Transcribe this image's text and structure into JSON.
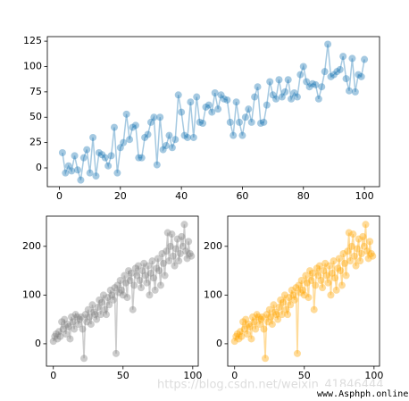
{
  "chart_data": [
    {
      "type": "line",
      "marker": "circle",
      "color": "#1f77b4",
      "x": [
        1,
        2,
        3,
        4,
        5,
        6,
        7,
        8,
        9,
        10,
        11,
        12,
        13,
        14,
        15,
        16,
        17,
        18,
        19,
        20,
        21,
        22,
        23,
        24,
        25,
        26,
        27,
        28,
        29,
        30,
        31,
        32,
        33,
        34,
        35,
        36,
        37,
        38,
        39,
        40,
        41,
        42,
        43,
        44,
        45,
        46,
        47,
        48,
        49,
        50,
        51,
        52,
        53,
        54,
        55,
        56,
        57,
        58,
        59,
        60,
        61,
        62,
        63,
        64,
        65,
        66,
        67,
        68,
        69,
        70,
        71,
        72,
        73,
        74,
        75,
        76,
        77,
        78,
        79,
        80,
        81,
        82,
        83,
        84,
        85,
        86,
        87,
        88,
        89,
        90,
        91,
        92,
        93,
        94,
        95,
        96,
        97,
        98,
        99,
        100
      ],
      "values": [
        15,
        -5,
        2,
        -3,
        12,
        -2,
        -12,
        10,
        18,
        -5,
        30,
        -8,
        15,
        13,
        10,
        2,
        12,
        40,
        -5,
        20,
        25,
        53,
        28,
        40,
        42,
        10,
        10,
        30,
        33,
        45,
        50,
        3,
        50,
        18,
        22,
        32,
        20,
        28,
        72,
        55,
        32,
        30,
        65,
        30,
        70,
        45,
        44,
        60,
        62,
        55,
        74,
        58,
        72,
        68,
        67,
        45,
        32,
        65,
        45,
        32,
        50,
        58,
        45,
        70,
        80,
        44,
        45,
        62,
        85,
        72,
        68,
        87,
        70,
        75,
        87,
        68,
        74,
        70,
        92,
        100,
        85,
        80,
        83,
        82,
        68,
        80,
        95,
        122,
        90,
        92,
        95,
        97,
        110,
        88,
        76,
        108,
        75,
        92,
        90,
        107
      ],
      "xlim": [
        -3.95,
        104.95
      ],
      "xticks": [
        0,
        20,
        40,
        60,
        80,
        100
      ],
      "ylim": [
        -18.5,
        129.5
      ],
      "yticks": [
        0,
        25,
        50,
        75,
        100,
        125
      ]
    },
    {
      "type": "line",
      "marker": "circle",
      "color": "#808080",
      "x": [
        0,
        1,
        2,
        3,
        4,
        5,
        6,
        7,
        8,
        9,
        10,
        11,
        12,
        13,
        14,
        15,
        16,
        17,
        18,
        19,
        20,
        21,
        22,
        23,
        24,
        25,
        26,
        27,
        28,
        29,
        30,
        31,
        32,
        33,
        34,
        35,
        36,
        37,
        38,
        39,
        40,
        41,
        42,
        43,
        44,
        45,
        46,
        47,
        48,
        49,
        50,
        51,
        52,
        53,
        54,
        55,
        56,
        57,
        58,
        59,
        60,
        61,
        62,
        63,
        64,
        65,
        66,
        67,
        68,
        69,
        70,
        71,
        72,
        73,
        74,
        75,
        76,
        77,
        78,
        79,
        80,
        81,
        82,
        83,
        84,
        85,
        86,
        87,
        88,
        89,
        90,
        91,
        92,
        93,
        94,
        95,
        96,
        97,
        98,
        99
      ],
      "values": [
        5,
        15,
        20,
        10,
        25,
        15,
        45,
        30,
        50,
        20,
        40,
        35,
        10,
        55,
        45,
        30,
        60,
        55,
        40,
        50,
        55,
        30,
        -30,
        60,
        45,
        70,
        55,
        40,
        80,
        65,
        60,
        50,
        75,
        90,
        60,
        85,
        100,
        70,
        60,
        95,
        80,
        110,
        100,
        90,
        115,
        -20,
        120,
        105,
        130,
        110,
        100,
        140,
        125,
        95,
        150,
        130,
        145,
        70,
        120,
        155,
        140,
        160,
        130,
        115,
        150,
        165,
        140,
        125,
        160,
        100,
        145,
        170,
        135,
        110,
        155,
        175,
        150,
        120,
        185,
        165,
        140,
        190,
        228,
        170,
        200,
        225,
        180,
        160,
        195,
        215,
        170,
        185,
        220,
        200,
        245,
        190,
        175,
        210,
        185,
        180
      ],
      "xlim": [
        -4.95,
        103.95
      ],
      "xticks": [
        0,
        50,
        100
      ],
      "ylim": [
        -46,
        262
      ],
      "yticks": [
        0,
        100,
        200
      ]
    },
    {
      "type": "line",
      "marker": "circle",
      "color": "#ffa500",
      "x": [
        0,
        1,
        2,
        3,
        4,
        5,
        6,
        7,
        8,
        9,
        10,
        11,
        12,
        13,
        14,
        15,
        16,
        17,
        18,
        19,
        20,
        21,
        22,
        23,
        24,
        25,
        26,
        27,
        28,
        29,
        30,
        31,
        32,
        33,
        34,
        35,
        36,
        37,
        38,
        39,
        40,
        41,
        42,
        43,
        44,
        45,
        46,
        47,
        48,
        49,
        50,
        51,
        52,
        53,
        54,
        55,
        56,
        57,
        58,
        59,
        60,
        61,
        62,
        63,
        64,
        65,
        66,
        67,
        68,
        69,
        70,
        71,
        72,
        73,
        74,
        75,
        76,
        77,
        78,
        79,
        80,
        81,
        82,
        83,
        84,
        85,
        86,
        87,
        88,
        89,
        90,
        91,
        92,
        93,
        94,
        95,
        96,
        97,
        98,
        99
      ],
      "values": [
        5,
        15,
        20,
        10,
        25,
        15,
        45,
        30,
        50,
        20,
        40,
        35,
        10,
        55,
        45,
        30,
        60,
        55,
        40,
        50,
        55,
        30,
        -30,
        60,
        45,
        70,
        55,
        40,
        80,
        65,
        60,
        50,
        75,
        90,
        60,
        85,
        100,
        70,
        60,
        95,
        80,
        110,
        100,
        90,
        115,
        -20,
        120,
        105,
        130,
        110,
        100,
        140,
        125,
        95,
        150,
        130,
        145,
        70,
        120,
        155,
        140,
        160,
        130,
        115,
        150,
        165,
        140,
        125,
        160,
        100,
        145,
        170,
        135,
        110,
        155,
        175,
        150,
        120,
        185,
        165,
        140,
        190,
        228,
        170,
        200,
        225,
        180,
        160,
        195,
        215,
        170,
        185,
        220,
        200,
        245,
        190,
        175,
        210,
        185,
        180
      ],
      "xlim": [
        -4.95,
        103.95
      ],
      "xticks": [
        0,
        50,
        100
      ],
      "ylim": [
        -46,
        262
      ],
      "yticks": [
        0,
        100,
        200
      ]
    }
  ],
  "watermarks": [
    "https://blog.csdn.net/weixin_41846444",
    "www.Asphph.online"
  ]
}
